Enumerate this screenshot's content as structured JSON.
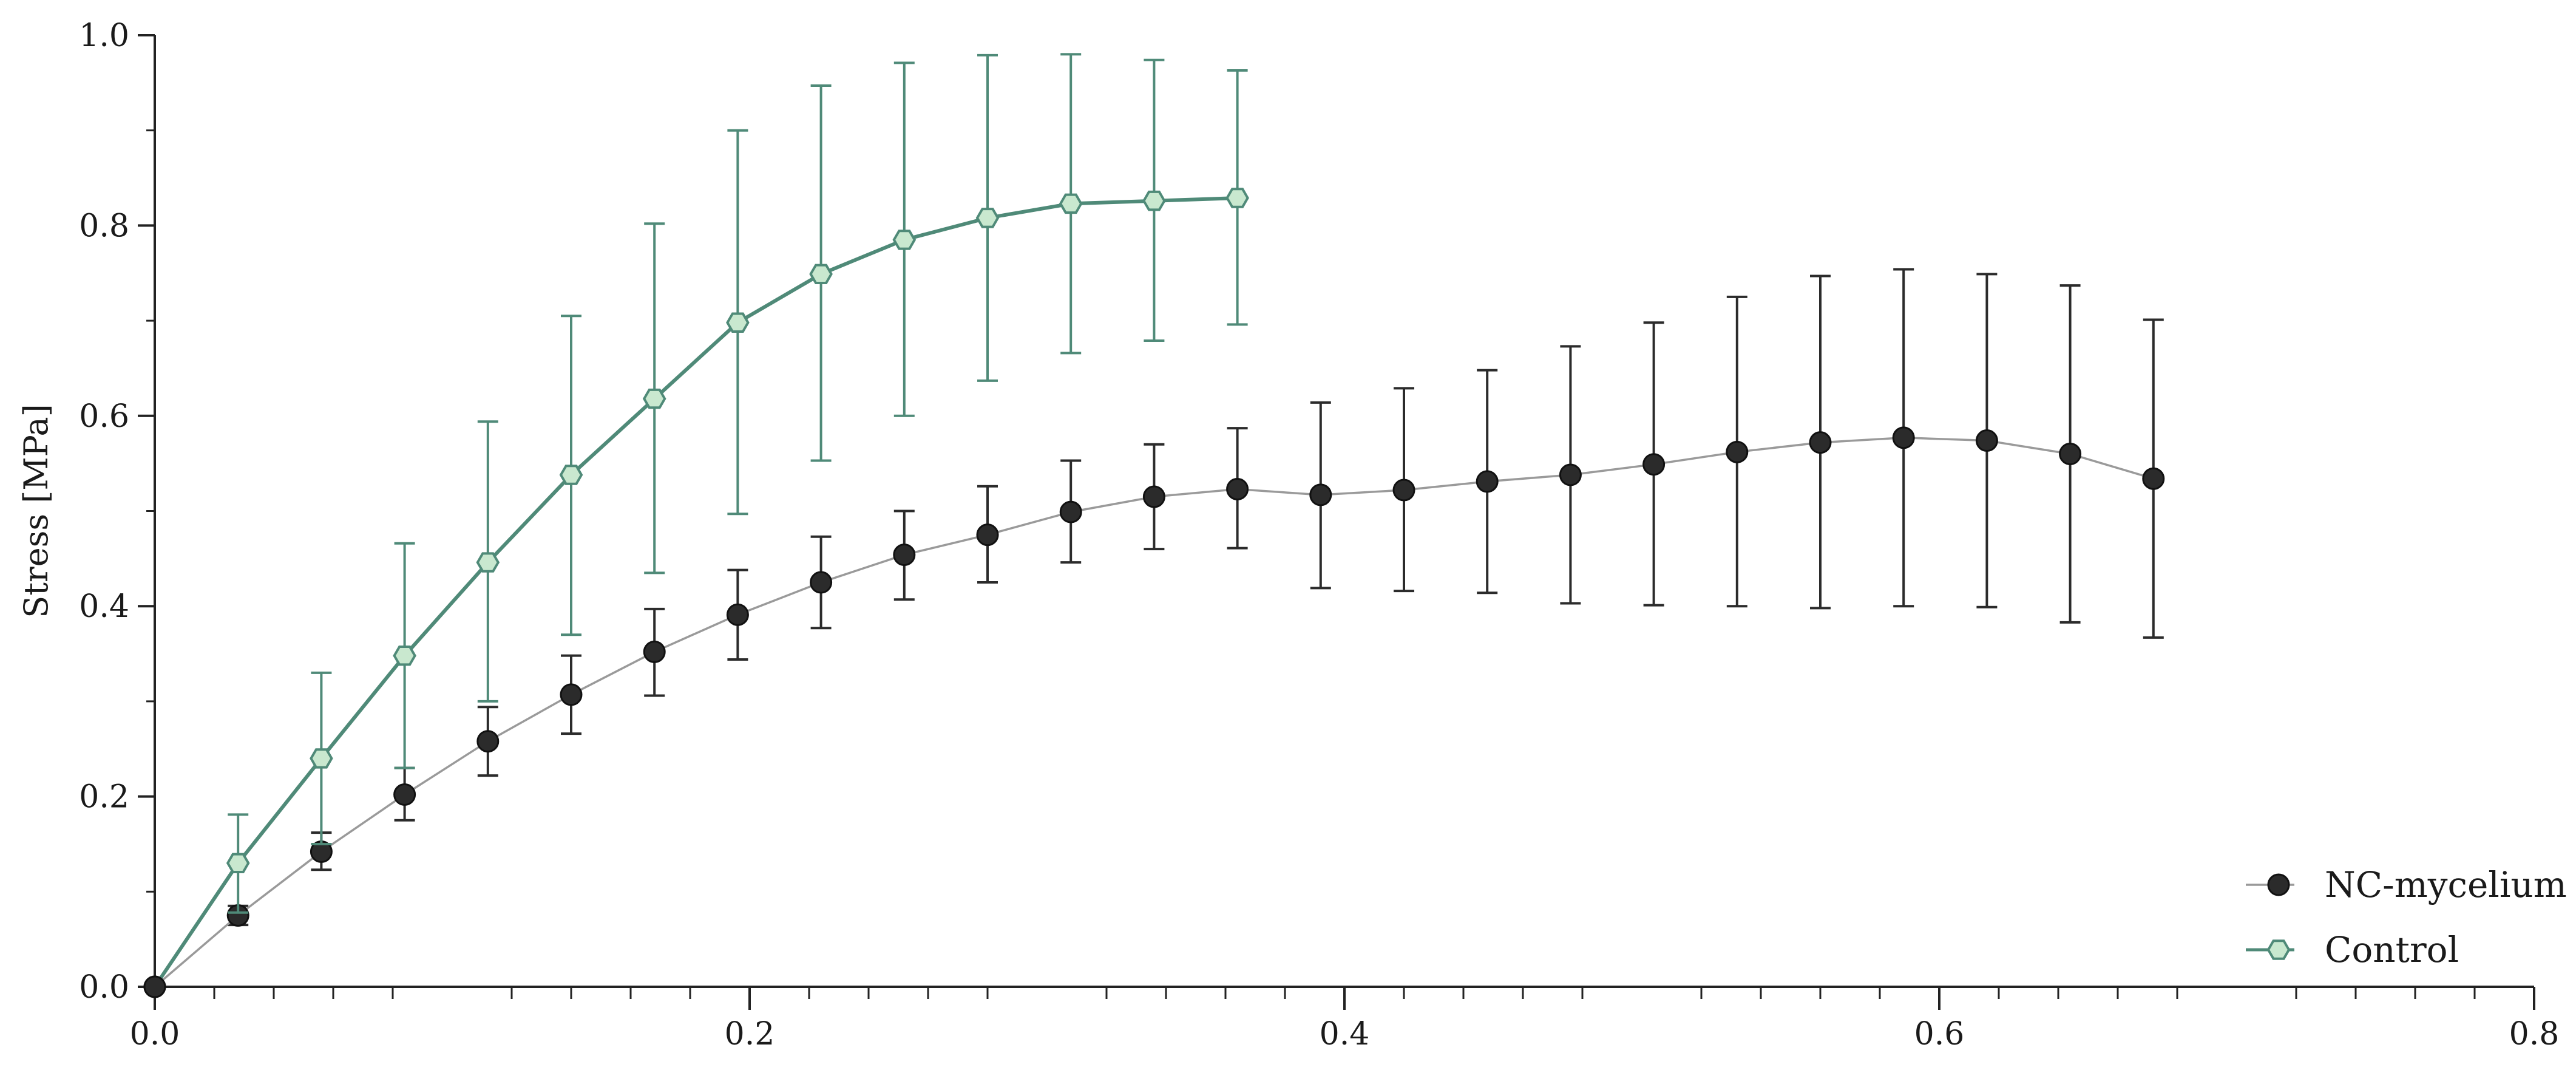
{
  "chart_data": {
    "type": "line",
    "title": "",
    "xlabel": "",
    "ylabel": "Stress [MPa]",
    "xlim": [
      0,
      0.8
    ],
    "ylim": [
      0,
      1.0
    ],
    "xticks": [
      "0.0",
      "0.2",
      "0.4",
      "0.6",
      "0.8"
    ],
    "yticks": [
      "0.0",
      "0.2",
      "0.4",
      "0.6",
      "0.8",
      "1.0"
    ],
    "grid": false,
    "legend_position": "bottom-right",
    "series": [
      {
        "name": "NC-mycelium",
        "marker": "circle",
        "color": "#2b2b2b",
        "line_color": "#9a9a9a",
        "x": [
          0.0,
          0.028,
          0.056,
          0.084,
          0.112,
          0.14,
          0.168,
          0.196,
          0.224,
          0.252,
          0.28,
          0.308,
          0.336,
          0.364,
          0.392,
          0.42,
          0.448,
          0.476,
          0.504,
          0.532,
          0.56,
          0.588,
          0.616,
          0.644,
          0.672
        ],
        "y": [
          0.0,
          0.075,
          0.142,
          0.202,
          0.258,
          0.307,
          0.352,
          0.391,
          0.425,
          0.454,
          0.475,
          0.499,
          0.515,
          0.523,
          0.517,
          0.522,
          0.531,
          0.538,
          0.549,
          0.562,
          0.572,
          0.577,
          0.574,
          0.56,
          0.534
        ],
        "err_low": [
          0.0,
          0.065,
          0.123,
          0.175,
          0.222,
          0.266,
          0.306,
          0.344,
          0.377,
          0.407,
          0.425,
          0.446,
          0.46,
          0.461,
          0.419,
          0.416,
          0.414,
          0.403,
          0.401,
          0.4,
          0.398,
          0.4,
          0.399,
          0.383,
          0.367
        ],
        "err_high": [
          0.0,
          0.085,
          0.162,
          0.23,
          0.294,
          0.348,
          0.397,
          0.438,
          0.473,
          0.5,
          0.526,
          0.553,
          0.57,
          0.587,
          0.614,
          0.629,
          0.648,
          0.673,
          0.698,
          0.725,
          0.747,
          0.754,
          0.749,
          0.737,
          0.701
        ]
      },
      {
        "name": "Control",
        "marker": "hexagon",
        "color": "#c9e8cf",
        "line_color": "#4f8a78",
        "x": [
          0.0,
          0.028,
          0.056,
          0.084,
          0.112,
          0.14,
          0.168,
          0.196,
          0.224,
          0.252,
          0.28,
          0.308,
          0.336,
          0.364
        ],
        "y": [
          0.0,
          0.13,
          0.24,
          0.348,
          0.446,
          0.538,
          0.618,
          0.698,
          0.749,
          0.785,
          0.808,
          0.823,
          0.826,
          0.829
        ],
        "err_low": [
          0.0,
          0.078,
          0.15,
          0.23,
          0.3,
          0.37,
          0.435,
          0.497,
          0.553,
          0.6,
          0.637,
          0.666,
          0.679,
          0.696
        ],
        "err_high": [
          0.0,
          0.181,
          0.33,
          0.466,
          0.594,
          0.705,
          0.802,
          0.9,
          0.947,
          0.971,
          0.979,
          0.98,
          0.974,
          0.963
        ]
      }
    ]
  }
}
